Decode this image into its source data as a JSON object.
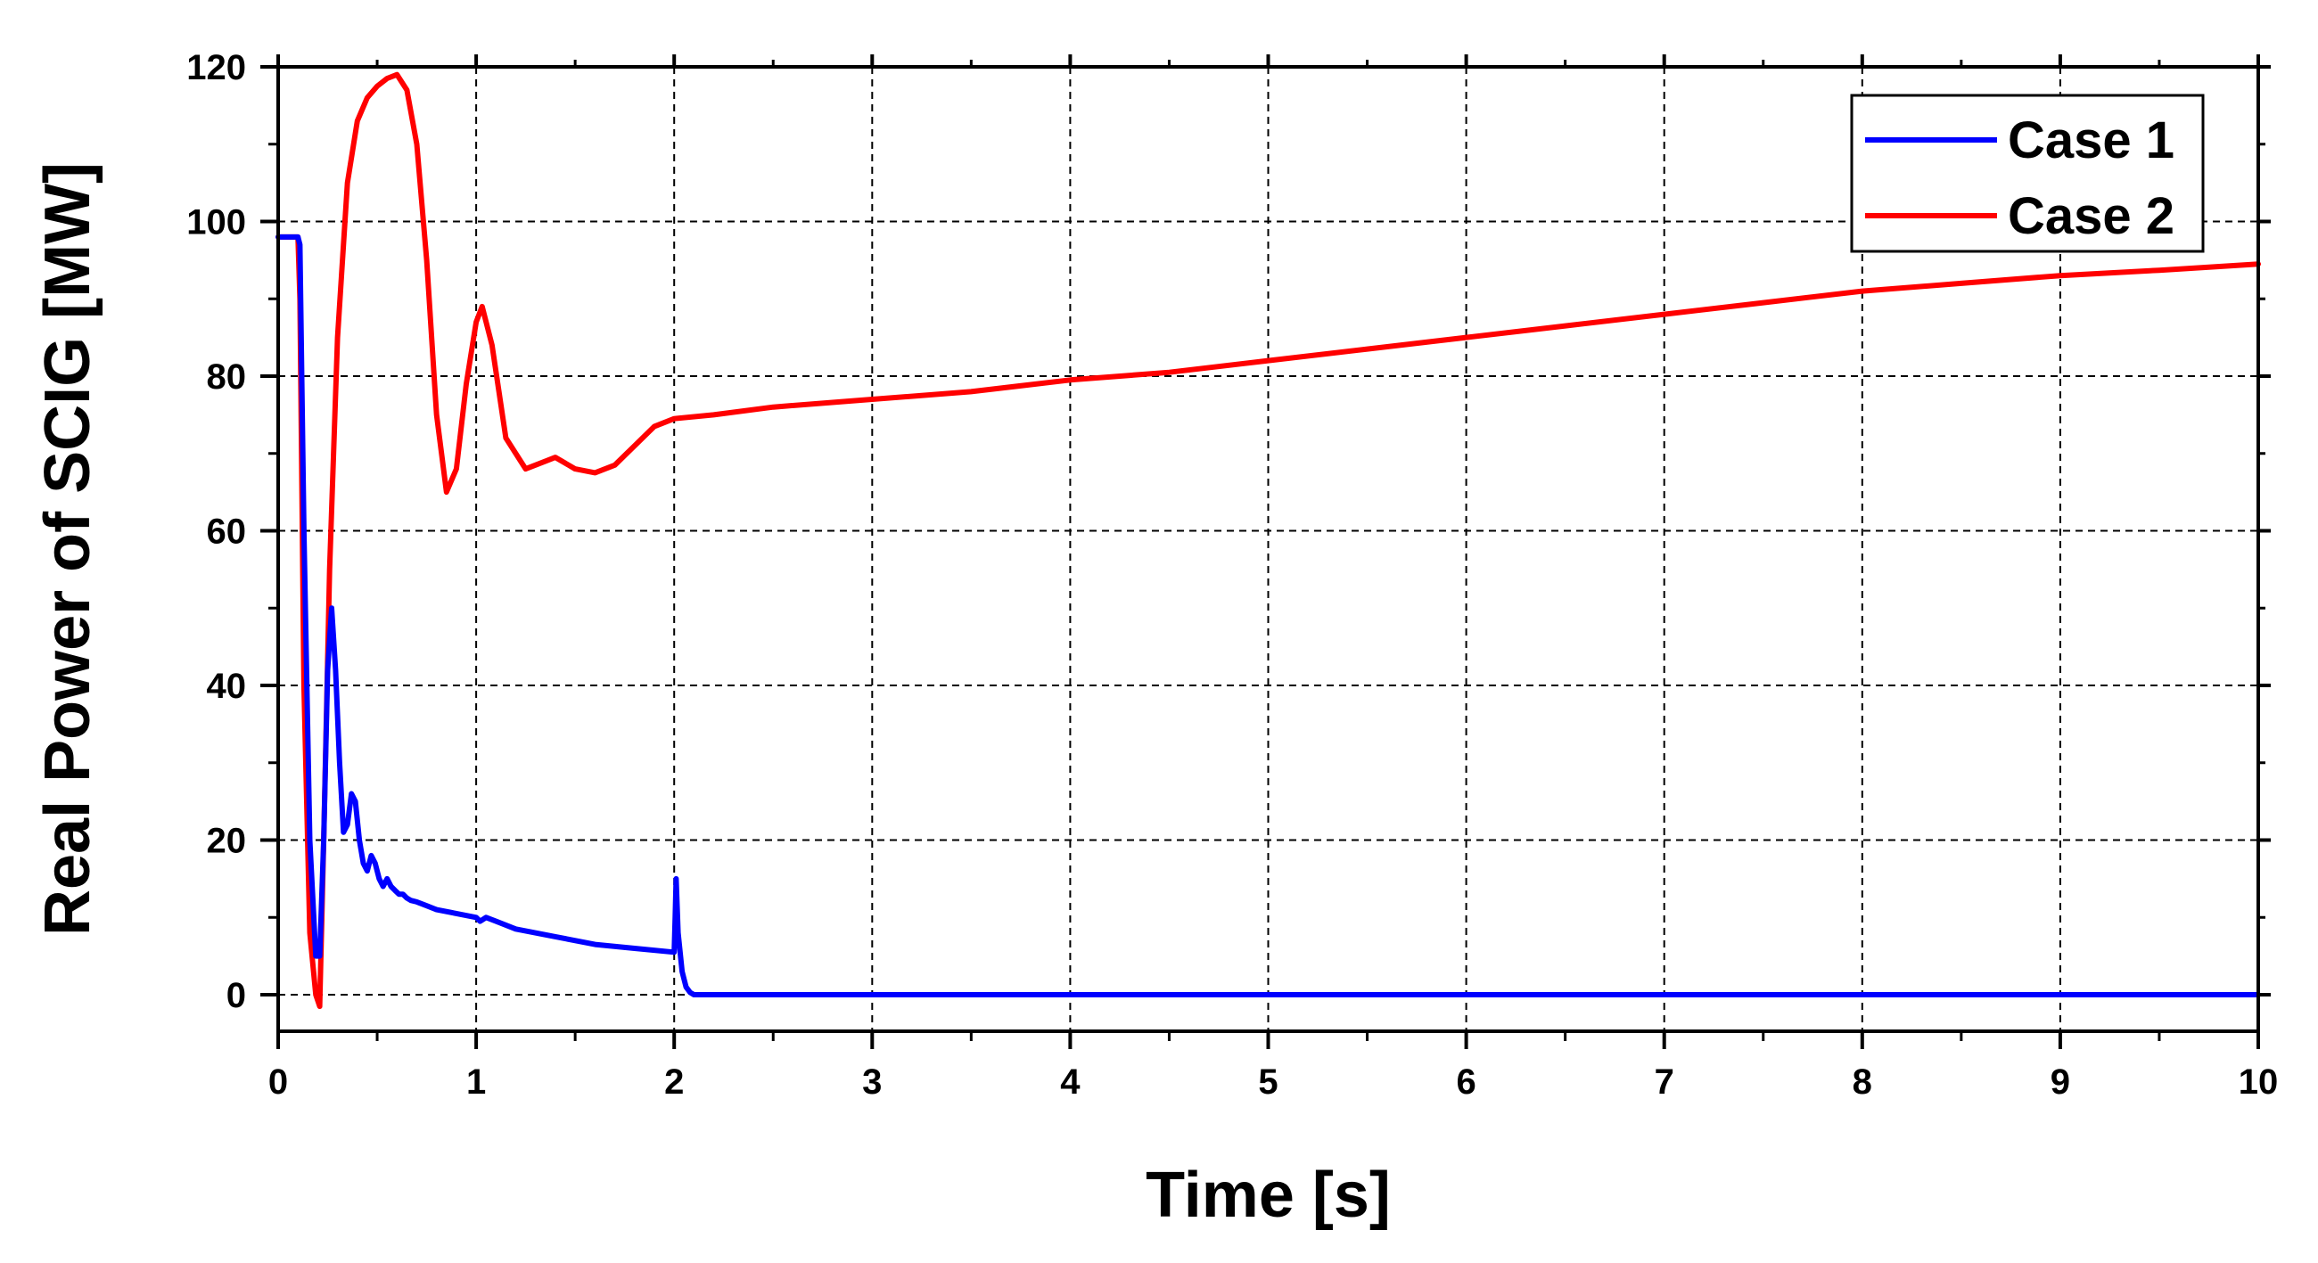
{
  "chart_data": {
    "type": "line",
    "title": "",
    "xlabel": "Time [s]",
    "ylabel": "Real Power of SCIG [MW]",
    "xlim": [
      0,
      10
    ],
    "ylim": [
      -5,
      120
    ],
    "xticks": [
      0,
      1,
      2,
      3,
      4,
      5,
      6,
      7,
      8,
      9,
      10
    ],
    "yticks": [
      0,
      20,
      40,
      60,
      80,
      100,
      120
    ],
    "grid": true,
    "legend": "top-right",
    "series": [
      {
        "name": "Case 1",
        "color": "#0000ff",
        "x": [
          0,
          0.1,
          0.11,
          0.13,
          0.16,
          0.19,
          0.21,
          0.23,
          0.25,
          0.27,
          0.29,
          0.31,
          0.33,
          0.35,
          0.37,
          0.39,
          0.41,
          0.43,
          0.45,
          0.47,
          0.49,
          0.51,
          0.53,
          0.55,
          0.57,
          0.59,
          0.61,
          0.63,
          0.65,
          0.67,
          0.7,
          0.75,
          0.8,
          0.9,
          1.0,
          1.02,
          1.05,
          1.1,
          1.2,
          1.4,
          1.6,
          1.8,
          2.0,
          2.005,
          2.01,
          2.02,
          2.04,
          2.06,
          2.08,
          2.1,
          2.15,
          2.3,
          3,
          4,
          5,
          6,
          7,
          8,
          9,
          10
        ],
        "y": [
          98,
          98,
          97,
          60,
          20,
          5,
          5,
          20,
          42,
          50,
          42,
          30,
          21,
          22,
          26,
          25,
          20,
          17,
          16,
          18,
          17,
          15,
          14,
          15,
          14,
          13.5,
          13,
          13,
          12.5,
          12.2,
          12,
          11.5,
          11,
          10.5,
          10,
          9.5,
          10,
          9.5,
          8.5,
          7.5,
          6.5,
          6,
          5.5,
          10,
          15,
          8,
          3,
          1,
          0.3,
          0,
          0,
          0,
          0,
          0,
          0,
          0,
          0,
          0,
          0,
          0
        ]
      },
      {
        "name": "Case 2",
        "color": "#ff0000",
        "x": [
          0,
          0.1,
          0.11,
          0.13,
          0.16,
          0.19,
          0.21,
          0.23,
          0.26,
          0.3,
          0.35,
          0.4,
          0.45,
          0.5,
          0.55,
          0.6,
          0.65,
          0.7,
          0.75,
          0.8,
          0.85,
          0.9,
          0.95,
          1.0,
          1.03,
          1.08,
          1.15,
          1.25,
          1.35,
          1.4,
          1.5,
          1.6,
          1.7,
          1.8,
          1.9,
          2.0,
          2.2,
          2.5,
          3,
          3.5,
          4,
          4.5,
          5,
          5.5,
          6,
          6.5,
          7,
          7.5,
          8,
          8.5,
          9,
          9.5,
          10
        ],
        "y": [
          98,
          98,
          90,
          40,
          8,
          0,
          -1.5,
          20,
          55,
          85,
          105,
          113,
          116,
          117.5,
          118.5,
          119,
          117,
          110,
          95,
          75,
          65,
          68,
          79,
          87,
          89,
          84,
          72,
          68,
          69,
          69.5,
          68,
          67.5,
          68.5,
          71,
          73.5,
          74.5,
          75,
          76,
          77,
          78,
          79.5,
          80.5,
          82,
          83.5,
          85,
          86.5,
          88,
          89.5,
          91,
          92,
          93,
          93.7,
          94.5
        ]
      }
    ]
  }
}
